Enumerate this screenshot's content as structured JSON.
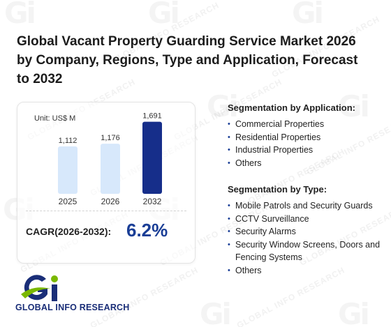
{
  "title": "Global Vacant Property Guarding Service Market 2026 by Company, Regions, Type and Application, Forecast to 2032",
  "watermark_text": "GLOBAL INFO RESEARCH",
  "chart_data": {
    "type": "bar",
    "unit_label": "Unit: US$ M",
    "categories": [
      "2025",
      "2026",
      "2032"
    ],
    "values": [
      1112,
      1176,
      1691
    ],
    "value_labels": [
      "1,112",
      "1,176",
      "1,691"
    ],
    "bar_colors": [
      "#d7e8fb",
      "#d7e8fb",
      "#162e8a"
    ],
    "ylim": [
      0,
      1800
    ],
    "grid": false,
    "legend": "none"
  },
  "cagr": {
    "label": "CAGR(2026-2032):",
    "value": "6.2%"
  },
  "segmentation_application": {
    "title": "Segmentation by Application:",
    "items": [
      "Commercial Properties",
      "Residential Properties",
      "Industrial Properties",
      "Others"
    ]
  },
  "segmentation_type": {
    "title": "Segmentation by Type:",
    "items": [
      "Mobile Patrols and Security Guards",
      "CCTV Surveillance",
      "Security Alarms",
      "Security Window Screens, Doors and Fencing Systems",
      "Others"
    ]
  },
  "logo": {
    "text": "GLOBAL INFO RESEARCH",
    "colors": {
      "navy": "#1a2e78",
      "green": "#7ab800"
    }
  },
  "colors": {
    "accent": "#1a3e96",
    "light_bar": "#d7e8fb",
    "dark_bar": "#162e8a"
  }
}
